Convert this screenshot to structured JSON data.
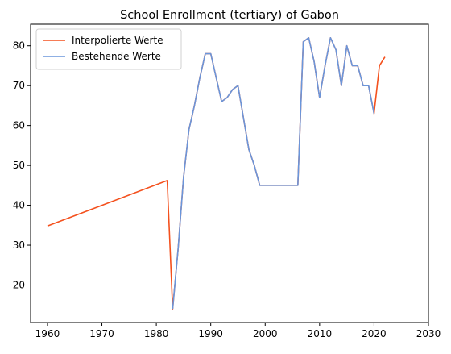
{
  "chart_data": {
    "type": "line",
    "title": "School Enrollment (tertiary) of Gabon",
    "xlabel": "",
    "ylabel": "",
    "xlim": [
      1956.9,
      2030
    ],
    "ylim": [
      10.6,
      85.4
    ],
    "x_ticks": [
      1960,
      1970,
      1980,
      1990,
      2000,
      2010,
      2020,
      2030
    ],
    "y_ticks": [
      20,
      30,
      40,
      50,
      60,
      70,
      80
    ],
    "grid": false,
    "legend_position": "top-left",
    "series": [
      {
        "name": "Interpolierte Werte",
        "color": "#f4511e",
        "points": [
          [
            1960,
            34.8
          ],
          [
            1982,
            46.2
          ],
          [
            1983,
            14.0
          ],
          [
            1984,
            29.0
          ],
          [
            1985,
            47.0
          ],
          [
            1986,
            59.0
          ],
          [
            1987,
            65.0
          ],
          [
            1988,
            72.0
          ],
          [
            1989,
            78.0
          ],
          [
            1990,
            78.0
          ],
          [
            1991,
            72.0
          ],
          [
            1992,
            66.0
          ],
          [
            1993,
            67.0
          ],
          [
            1994,
            69.0
          ],
          [
            1995,
            70.0
          ],
          [
            1996,
            62.0
          ],
          [
            1997,
            54.0
          ],
          [
            1998,
            50.0
          ],
          [
            1999,
            45.0
          ],
          [
            2000,
            45.0
          ],
          [
            2006,
            45.0
          ],
          [
            2007,
            81.0
          ],
          [
            2008,
            82.0
          ],
          [
            2009,
            76.0
          ],
          [
            2010,
            67.0
          ],
          [
            2011,
            75.0
          ],
          [
            2012,
            82.0
          ],
          [
            2013,
            79.0
          ],
          [
            2014,
            70.0
          ],
          [
            2015,
            80.0
          ],
          [
            2016,
            75.0
          ],
          [
            2017,
            75.0
          ],
          [
            2018,
            70.0
          ],
          [
            2019,
            70.0
          ],
          [
            2020,
            63.0
          ],
          [
            2021,
            75.0
          ],
          [
            2022,
            77.2
          ]
        ]
      },
      {
        "name": "Bestehende Werte",
        "color": "#6a96db",
        "points": [
          [
            1983,
            14.0
          ],
          [
            1984,
            29.0
          ],
          [
            1985,
            47.0
          ],
          [
            1986,
            59.0
          ],
          [
            1987,
            65.0
          ],
          [
            1988,
            72.0
          ],
          [
            1989,
            78.0
          ],
          [
            1990,
            78.0
          ],
          [
            1991,
            72.0
          ],
          [
            1992,
            66.0
          ],
          [
            1993,
            67.0
          ],
          [
            1994,
            69.0
          ],
          [
            1995,
            70.0
          ],
          [
            1996,
            62.0
          ],
          [
            1997,
            54.0
          ],
          [
            1998,
            50.0
          ],
          [
            1999,
            45.0
          ],
          [
            2000,
            45.0
          ],
          [
            2006,
            45.0
          ],
          [
            2007,
            81.0
          ],
          [
            2008,
            82.0
          ],
          [
            2009,
            76.0
          ],
          [
            2010,
            67.0
          ],
          [
            2011,
            75.0
          ],
          [
            2012,
            82.0
          ],
          [
            2013,
            79.0
          ],
          [
            2014,
            70.0
          ],
          [
            2015,
            80.0
          ],
          [
            2016,
            75.0
          ],
          [
            2017,
            75.0
          ],
          [
            2018,
            70.0
          ],
          [
            2019,
            70.0
          ],
          [
            2020,
            63.0
          ]
        ]
      }
    ]
  }
}
